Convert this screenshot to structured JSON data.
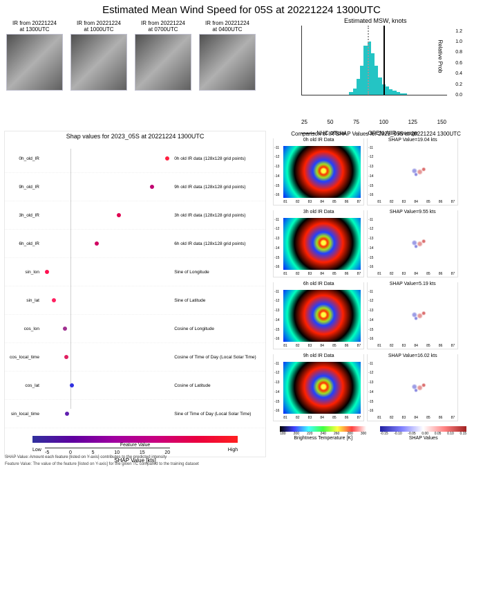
{
  "title": "Estimated Mean Wind Speed for 05S at 20221224 1300UTC",
  "ir_strip": [
    {
      "l1": "IR from 20221224",
      "l2": "at 1300UTC"
    },
    {
      "l1": "IR from 20221224",
      "l2": "at 1000UTC"
    },
    {
      "l1": "IR from 20221224",
      "l2": "at 0700UTC"
    },
    {
      "l1": "IR from 20221224",
      "l2": "at 0400UTC"
    }
  ],
  "hist": {
    "title": "Estimated MSW, knots",
    "xlim": [
      10,
      170
    ],
    "xticks": [
      "25",
      "50",
      "75",
      "100",
      "125",
      "150"
    ],
    "ylim": [
      0,
      1.3
    ],
    "yticks": [
      "0.0",
      "0.2",
      "0.4",
      "0.6",
      "0.8",
      "1.0",
      "1.2"
    ],
    "ylabel": "Relative Prob",
    "nhc_line_x": 100,
    "open_line_x": 82,
    "color": "#24c4c4",
    "bars": [
      {
        "x": 62,
        "h": 0.05
      },
      {
        "x": 66,
        "h": 0.12
      },
      {
        "x": 70,
        "h": 0.3
      },
      {
        "x": 74,
        "h": 0.55
      },
      {
        "x": 78,
        "h": 0.92
      },
      {
        "x": 82,
        "h": 1.0
      },
      {
        "x": 86,
        "h": 0.78
      },
      {
        "x": 90,
        "h": 0.55
      },
      {
        "x": 94,
        "h": 0.32
      },
      {
        "x": 98,
        "h": 0.2
      },
      {
        "x": 102,
        "h": 0.15
      },
      {
        "x": 106,
        "h": 0.1
      },
      {
        "x": 110,
        "h": 0.08
      },
      {
        "x": 114,
        "h": 0.05
      },
      {
        "x": 118,
        "h": 0.03
      },
      {
        "x": 122,
        "h": 0.02
      }
    ],
    "legend": [
      "NHC official",
      "OPEN-AIIR average"
    ]
  },
  "shap_plot": {
    "title": "Shap values for 2023_05S at 20221224 1300UTC",
    "xlim": [
      -5,
      20
    ],
    "xticks": [
      "-5",
      "0",
      "5",
      "10",
      "15",
      "20"
    ],
    "xlabel": "SHAP Value [kts]",
    "feature_label": "Feature Value",
    "low": "Low",
    "high": "High",
    "rows": [
      {
        "ll": "0h_old_IR",
        "lr": "0h old IR data (128x128 grid points)",
        "v": 19.0,
        "c": "#ff2040"
      },
      {
        "ll": "9h_old_IR",
        "lr": "9h old IR data (128x128 grid points)",
        "v": 16.0,
        "c": "#c00070"
      },
      {
        "ll": "3h_old_IR",
        "lr": "3h old IR data (128x128 grid points)",
        "v": 9.5,
        "c": "#e00050"
      },
      {
        "ll": "6h_old_IR",
        "lr": "6h old IR data (128x128 grid points)",
        "v": 5.2,
        "c": "#d00060"
      },
      {
        "ll": "sin_lon",
        "lr": "Sine of Longitude",
        "v": -4.6,
        "c": "#ff1050"
      },
      {
        "ll": "sin_lat",
        "lr": "Sine of Latitude",
        "v": -3.2,
        "c": "#ff2060"
      },
      {
        "ll": "cos_lon",
        "lr": "Cosine of Longitude",
        "v": -1.0,
        "c": "#a03090"
      },
      {
        "ll": "cos_local_time",
        "lr": "Cosine of Time of Day (Local Solar Time)",
        "v": -0.8,
        "c": "#e02060"
      },
      {
        "ll": "cos_lat",
        "lr": "Cosine of Latitude",
        "v": 0.3,
        "c": "#3030e0"
      },
      {
        "ll": "sin_local_time",
        "lr": "Sine of Time of Day (Local Solar Time)",
        "v": -0.7,
        "c": "#6020b0"
      }
    ],
    "foot1": "SHAP Value: Amount each feature [listed on Y-axis] contributes to the predicted intensity",
    "foot2": "Feature Value: The value of the feature [listed on Y-axis] for the given TC compared to the training dataset"
  },
  "comp": {
    "title": "Comparison of IR SHAP Values for 2023_05S at 20221224 1300UTC",
    "yticks": [
      "-11",
      "-12",
      "-13",
      "-14",
      "-15",
      "-16"
    ],
    "xticks": [
      "81",
      "82",
      "83",
      "84",
      "85",
      "86",
      "87"
    ],
    "rows": [
      {
        "left": "0h old IR Data",
        "right": "SHAP Value=19.04 kts"
      },
      {
        "left": "3h old IR Data",
        "right": "SHAP Value=9.55 kts"
      },
      {
        "left": "6h old IR Data",
        "right": "SHAP Value=5.19 kts"
      },
      {
        "left": "9h old IR Data",
        "right": "SHAP Value=16.02 kts"
      }
    ],
    "btemp_label": "Brightness Temperature [K]",
    "btemp_ticks": [
      "180",
      "200",
      "220",
      "240",
      "260",
      "280",
      "300"
    ],
    "shapv_label": "SHAP Values",
    "shapv_ticks": [
      "-0.15",
      "-0.10",
      "-0.05",
      "0.00",
      "0.05",
      "0.10",
      "0.15"
    ]
  }
}
